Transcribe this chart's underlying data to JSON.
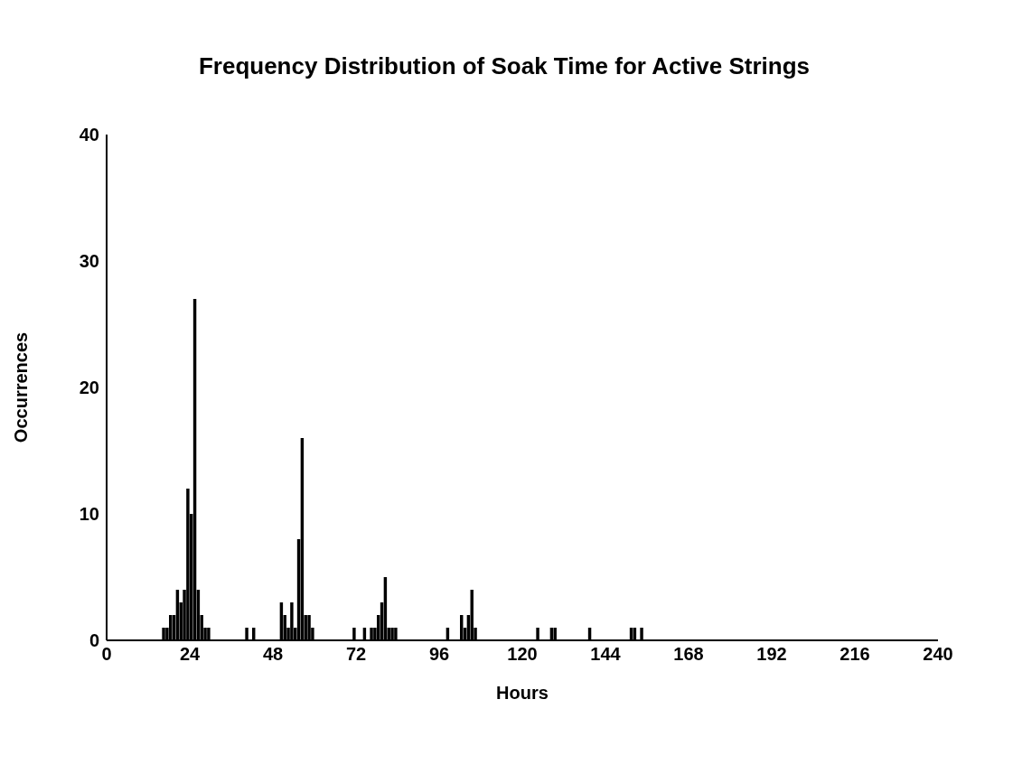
{
  "chart_data": {
    "type": "histogram",
    "title": "Frequency Distribution of Soak Time for Active Strings",
    "xlabel": "Hours",
    "ylabel": "Occurrences",
    "color": "#000000",
    "bins": [
      16,
      17,
      18,
      19,
      20,
      21,
      22,
      23,
      24,
      25,
      26,
      27,
      28,
      29,
      30,
      31,
      32,
      33,
      34,
      35,
      36,
      37,
      38,
      39,
      40,
      41,
      42,
      43,
      44,
      45,
      46,
      47,
      48,
      49,
      50,
      51,
      52,
      53,
      54,
      55,
      56,
      57,
      58,
      59,
      60,
      61,
      62,
      63,
      64,
      65,
      66,
      67,
      68,
      69,
      70,
      71,
      72,
      73,
      74,
      75,
      76,
      77,
      78,
      79,
      80,
      81,
      82,
      83,
      84,
      85,
      86,
      87,
      88,
      89,
      90,
      91,
      92,
      93,
      94,
      95,
      96,
      97,
      98,
      99,
      100,
      101,
      102,
      103,
      104,
      105,
      106,
      107,
      108,
      109,
      110,
      111,
      112,
      113,
      114,
      115,
      116,
      117,
      118,
      119,
      120,
      121,
      122,
      123,
      124,
      125,
      126,
      127,
      128,
      129,
      130,
      131,
      132,
      133,
      134,
      135,
      136,
      137,
      138,
      139,
      140,
      141,
      142,
      143,
      144,
      145,
      146,
      147,
      148,
      149,
      150,
      151,
      152,
      153,
      154,
      155
    ],
    "values": [
      1,
      1,
      2,
      2,
      4,
      3,
      4,
      12,
      10,
      27,
      4,
      2,
      1,
      1,
      0,
      0,
      0,
      0,
      0,
      0,
      0,
      0,
      0,
      0,
      1,
      0,
      1,
      0,
      0,
      0,
      0,
      0,
      0,
      0,
      3,
      2,
      1,
      3,
      1,
      8,
      16,
      2,
      2,
      1,
      0,
      0,
      0,
      0,
      0,
      0,
      0,
      0,
      0,
      0,
      0,
      1,
      0,
      0,
      1,
      0,
      1,
      1,
      2,
      3,
      5,
      1,
      1,
      1,
      0,
      0,
      0,
      0,
      0,
      0,
      0,
      0,
      0,
      0,
      0,
      0,
      0,
      0,
      1,
      0,
      0,
      0,
      2,
      1,
      2,
      4,
      1,
      0,
      0,
      0,
      0,
      0,
      0,
      0,
      0,
      0,
      0,
      0,
      0,
      0,
      0,
      0,
      0,
      0,
      1,
      0,
      0,
      0,
      1,
      1,
      0,
      0,
      0,
      0,
      0,
      0,
      0,
      0,
      0,
      1,
      0,
      0,
      0,
      0,
      0,
      0,
      0,
      0,
      0,
      0,
      0,
      1,
      1,
      0,
      1
    ],
    "xlim": [
      0,
      240
    ],
    "xticks": [
      0,
      24,
      48,
      72,
      96,
      120,
      144,
      168,
      192,
      216,
      240
    ],
    "ylim": [
      0,
      40
    ],
    "yticks": [
      0,
      10,
      20,
      30,
      40
    ],
    "grid": false
  }
}
